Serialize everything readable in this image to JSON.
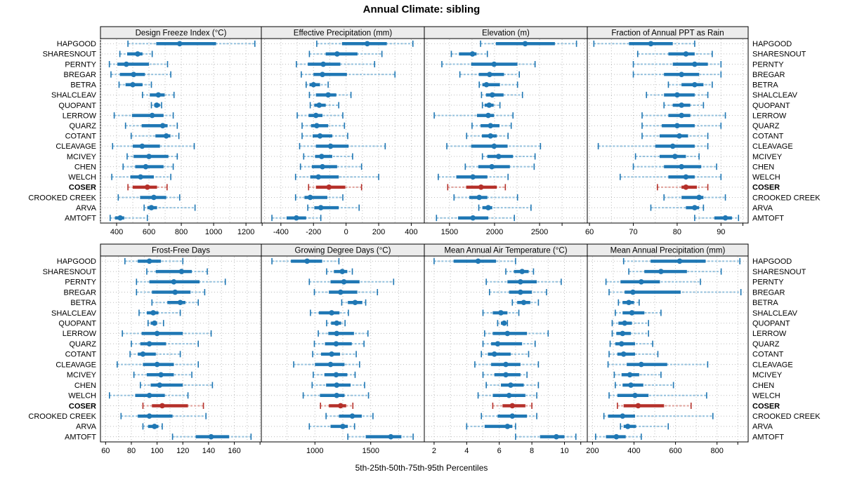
{
  "title": "Annual Climate: sibling",
  "caption": "5th-25th-50th-75th-95th Percentiles",
  "colors": {
    "normal": "#1f77b4",
    "normal_light": "#94c1dd",
    "highlight": "#b5302a",
    "highlight_light": "#dfa09a",
    "strip_bg": "#ececec",
    "grid": "#bdbdbd",
    "panel_border": "#000000",
    "text": "#000000"
  },
  "sites": [
    "HAPGOOD",
    "SHARESNOUT",
    "PERNTY",
    "BREGAR",
    "BETRA",
    "SHALCLEAV",
    "QUOPANT",
    "LERROW",
    "QUARZ",
    "COTANT",
    "CLEAVAGE",
    "MCIVEY",
    "CHEN",
    "WELCH",
    "COSER",
    "CROOKED CREEK",
    "ARVA",
    "AMTOFT"
  ],
  "highlight_site": "COSER",
  "chart_data": {
    "type": "scatter",
    "subtype": "multi-panel percentile interval dot plot (5th-25th-50th-75th-95th)",
    "percentiles": [
      5,
      25,
      50,
      75,
      95
    ],
    "layout": {
      "rows": 2,
      "cols": 4,
      "grid": "dotted",
      "y_categories": "sites listed on both left and right"
    },
    "panels": [
      {
        "id": "design_freeze_index",
        "title": "Design Freeze Index (°C)",
        "row": 0,
        "col": 0,
        "domain": [
          300,
          1295
        ],
        "major_ticks": [
          400,
          600,
          800,
          1000,
          1200
        ],
        "extra_ticks": [
          1300
        ],
        "grid_step": 100,
        "values": [
          [
            470,
            645,
            790,
            1015,
            1255
          ],
          [
            420,
            465,
            530,
            560,
            620
          ],
          [
            355,
            405,
            460,
            600,
            715
          ],
          [
            365,
            420,
            505,
            575,
            735
          ],
          [
            415,
            455,
            500,
            560,
            615
          ],
          [
            560,
            605,
            658,
            697,
            755
          ],
          [
            615,
            632,
            648,
            668,
            678
          ],
          [
            385,
            495,
            620,
            690,
            750
          ],
          [
            455,
            555,
            685,
            715,
            775
          ],
          [
            490,
            640,
            707,
            733,
            785
          ],
          [
            375,
            500,
            558,
            668,
            880
          ],
          [
            465,
            505,
            600,
            720,
            775
          ],
          [
            440,
            515,
            580,
            690,
            750
          ],
          [
            370,
            485,
            548,
            630,
            735
          ],
          [
            470,
            500,
            590,
            650,
            712
          ],
          [
            410,
            545,
            630,
            707,
            790
          ],
          [
            570,
            590,
            615,
            650,
            885
          ],
          [
            360,
            390,
            422,
            447,
            590
          ]
        ]
      },
      {
        "id": "effective_precipitation",
        "title": "Effective Precipitation (mm)",
        "row": 0,
        "col": 1,
        "domain": [
          -520,
          480
        ],
        "major_ticks": [
          -400,
          -200,
          0,
          200,
          400
        ],
        "extra_ticks": [],
        "grid_step": 100,
        "values": [
          [
            -180,
            -25,
            130,
            250,
            410
          ],
          [
            -225,
            -125,
            -55,
            70,
            220
          ],
          [
            -305,
            -235,
            -140,
            -35,
            175
          ],
          [
            -275,
            -200,
            -145,
            5,
            300
          ],
          [
            -245,
            -225,
            -200,
            -160,
            -110
          ],
          [
            -225,
            -185,
            -110,
            -60,
            30
          ],
          [
            -220,
            -195,
            -165,
            -125,
            -45
          ],
          [
            -300,
            -230,
            -185,
            -145,
            -20
          ],
          [
            -270,
            -215,
            -180,
            -110,
            -10
          ],
          [
            -270,
            -205,
            -160,
            -85,
            10
          ],
          [
            -285,
            -185,
            -95,
            15,
            240
          ],
          [
            -260,
            -190,
            -150,
            -85,
            40
          ],
          [
            -280,
            -210,
            -145,
            -55,
            95
          ],
          [
            -310,
            -220,
            -170,
            -45,
            200
          ],
          [
            -230,
            -185,
            -105,
            -5,
            95
          ],
          [
            -310,
            -255,
            -220,
            -115,
            -20
          ],
          [
            -235,
            -195,
            -155,
            -45,
            80
          ],
          [
            -455,
            -365,
            -305,
            -245,
            -155
          ]
        ]
      },
      {
        "id": "elevation",
        "title": "Elevation (m)",
        "row": 0,
        "col": 2,
        "domain": [
          1220,
          3030
        ],
        "major_ticks": [
          1500,
          2000,
          2500
        ],
        "extra_ticks": [
          2750
        ],
        "grid_step": 250,
        "values": [
          [
            1845,
            2015,
            2340,
            2670,
            2910
          ],
          [
            1520,
            1605,
            1755,
            1800,
            1920
          ],
          [
            1415,
            1740,
            1995,
            2255,
            2450
          ],
          [
            1615,
            1825,
            1945,
            2105,
            2275
          ],
          [
            1830,
            1865,
            1910,
            2060,
            2255
          ],
          [
            1855,
            1905,
            1975,
            2100,
            2310
          ],
          [
            1865,
            1890,
            1940,
            1990,
            2060
          ],
          [
            1330,
            1805,
            1930,
            1995,
            2205
          ],
          [
            1750,
            1845,
            1955,
            2055,
            2185
          ],
          [
            1690,
            1860,
            1955,
            2025,
            2150
          ],
          [
            1470,
            1740,
            1995,
            2145,
            2510
          ],
          [
            1865,
            1920,
            2045,
            2205,
            2450
          ],
          [
            1675,
            1820,
            1970,
            2170,
            2440
          ],
          [
            1375,
            1575,
            1760,
            1920,
            2150
          ],
          [
            1480,
            1685,
            1850,
            2025,
            2120
          ],
          [
            1550,
            1720,
            1830,
            1920,
            2255
          ],
          [
            1825,
            1865,
            1930,
            1975,
            2405
          ],
          [
            1355,
            1595,
            1760,
            1930,
            2220
          ]
        ]
      },
      {
        "id": "fraction_ppt_rain",
        "title": "Fraction of Annual PPT as Rain",
        "row": 0,
        "col": 3,
        "domain": [
          59.5,
          96.2
        ],
        "major_ticks": [
          60,
          70,
          80,
          90
        ],
        "extra_ticks": [
          95
        ],
        "grid_step": 5,
        "values": [
          [
            61,
            69,
            74,
            79,
            84
          ],
          [
            71,
            78,
            82,
            84,
            88
          ],
          [
            70,
            79,
            84,
            87,
            90
          ],
          [
            70,
            77,
            81,
            85,
            90
          ],
          [
            78,
            81,
            84,
            86,
            88
          ],
          [
            73,
            77,
            80,
            84,
            87
          ],
          [
            77,
            79,
            81,
            83,
            86
          ],
          [
            72,
            78,
            81,
            83,
            91
          ],
          [
            72,
            76.5,
            80,
            84,
            90
          ],
          [
            72,
            76,
            80.5,
            82.5,
            87
          ],
          [
            62,
            75,
            79,
            84,
            87
          ],
          [
            70.5,
            76,
            79.5,
            82,
            85
          ],
          [
            70,
            77,
            81,
            85.5,
            89
          ],
          [
            67,
            78,
            82,
            84,
            90
          ],
          [
            75.5,
            81,
            82,
            84.5,
            87
          ],
          [
            77,
            81,
            85,
            86,
            91
          ],
          [
            74,
            82,
            84,
            85,
            86
          ],
          [
            84,
            88.5,
            91,
            92.5,
            94
          ]
        ]
      },
      {
        "id": "frost_free_days",
        "title": "Frost-Free Days",
        "row": 1,
        "col": 0,
        "domain": [
          56,
          181
        ],
        "major_ticks": [
          60,
          80,
          100,
          120,
          140,
          160
        ],
        "extra_ticks": [
          180
        ],
        "grid_step": 10,
        "values": [
          [
            75,
            85,
            94,
            103,
            120
          ],
          [
            92,
            99,
            119,
            127,
            139
          ],
          [
            84,
            94,
            113,
            133,
            153
          ],
          [
            84,
            96,
            114,
            126,
            137
          ],
          [
            96,
            108,
            118,
            122,
            132
          ],
          [
            86,
            92,
            97,
            101,
            118
          ],
          [
            93,
            95,
            98,
            100,
            105
          ],
          [
            73,
            88,
            100,
            120,
            142
          ],
          [
            80,
            87,
            94,
            107,
            132
          ],
          [
            79,
            85,
            89,
            99,
            118
          ],
          [
            69,
            89,
            100,
            113,
            132
          ],
          [
            82,
            92,
            103,
            113,
            127
          ],
          [
            87,
            95,
            102,
            120,
            143
          ],
          [
            63,
            83,
            94,
            106,
            124
          ],
          [
            89,
            96,
            104,
            124,
            136
          ],
          [
            72,
            85,
            94,
            112,
            138
          ],
          [
            89,
            93,
            98,
            101,
            104
          ],
          [
            112,
            130,
            142,
            156,
            173
          ]
        ]
      },
      {
        "id": "growing_degree_days",
        "title": "Growing Degree Days (°C)",
        "row": 1,
        "col": 1,
        "domain": [
          520,
          1980
        ],
        "major_ticks": [
          1000,
          1500
        ],
        "extra_ticks": [],
        "grid_step": 250,
        "values": [
          [
            615,
            785,
            930,
            1065,
            1215
          ],
          [
            1105,
            1170,
            1245,
            1290,
            1335
          ],
          [
            950,
            1140,
            1260,
            1400,
            1705
          ],
          [
            995,
            1125,
            1230,
            1380,
            1560
          ],
          [
            1240,
            1295,
            1360,
            1425,
            1455
          ],
          [
            960,
            1035,
            1150,
            1220,
            1300
          ],
          [
            1105,
            1145,
            1195,
            1235,
            1270
          ],
          [
            1030,
            1120,
            1195,
            1350,
            1475
          ],
          [
            995,
            1090,
            1190,
            1330,
            1440
          ],
          [
            980,
            1055,
            1150,
            1225,
            1370
          ],
          [
            810,
            1000,
            1140,
            1265,
            1400
          ],
          [
            985,
            1085,
            1190,
            1290,
            1360
          ],
          [
            975,
            1100,
            1195,
            1320,
            1445
          ],
          [
            895,
            1045,
            1195,
            1265,
            1480
          ],
          [
            1050,
            1125,
            1230,
            1280,
            1340
          ],
          [
            1100,
            1215,
            1335,
            1420,
            1520
          ],
          [
            950,
            1140,
            1250,
            1295,
            1355
          ],
          [
            1295,
            1455,
            1680,
            1775,
            1880
          ]
        ]
      },
      {
        "id": "mean_annual_air_temperature",
        "title": "Mean Annual Air Temperature (°C)",
        "row": 1,
        "col": 2,
        "domain": [
          1.4,
          11.4
        ],
        "major_ticks": [
          2,
          4,
          6,
          8,
          10
        ],
        "extra_ticks": [
          11
        ],
        "grid_step": 1,
        "values": [
          [
            2.0,
            3.2,
            4.7,
            5.8,
            7.0
          ],
          [
            6.4,
            6.9,
            7.4,
            7.8,
            8.1
          ],
          [
            5.2,
            6.5,
            7.3,
            8.3,
            9.8
          ],
          [
            5.4,
            6.6,
            7.3,
            8.0,
            8.9
          ],
          [
            6.8,
            7.1,
            7.5,
            7.9,
            8.4
          ],
          [
            5.0,
            5.6,
            6.1,
            6.5,
            7.2
          ],
          [
            5.9,
            6.1,
            6.3,
            6.4,
            6.5
          ],
          [
            5.1,
            5.6,
            6.5,
            7.7,
            9.0
          ],
          [
            5.0,
            5.5,
            5.9,
            7.4,
            8.2
          ],
          [
            4.9,
            5.3,
            5.7,
            6.7,
            7.8
          ],
          [
            4.5,
            5.5,
            6.4,
            7.3,
            8.4
          ],
          [
            5.0,
            5.7,
            6.4,
            7.3,
            7.7
          ],
          [
            5.2,
            6.1,
            6.7,
            7.5,
            8.4
          ],
          [
            4.7,
            5.6,
            6.6,
            7.6,
            8.3
          ],
          [
            5.6,
            6.2,
            6.8,
            7.6,
            8.0
          ],
          [
            4.9,
            5.9,
            6.8,
            7.7,
            8.3
          ],
          [
            4.0,
            5.1,
            6.5,
            6.8,
            7.0
          ],
          [
            7.0,
            8.5,
            9.5,
            10.0,
            10.7
          ]
        ]
      },
      {
        "id": "mean_annual_precipitation",
        "title": "Mean Annual Precipitation (mm)",
        "row": 1,
        "col": 3,
        "domain": [
          175,
          950
        ],
        "major_ticks": [
          200,
          400,
          600,
          800
        ],
        "extra_ticks": [
          900
        ],
        "grid_step": 100,
        "values": [
          [
            350,
            480,
            620,
            745,
            910
          ],
          [
            375,
            450,
            530,
            655,
            820
          ],
          [
            265,
            335,
            435,
            525,
            720
          ],
          [
            280,
            355,
            395,
            625,
            915
          ],
          [
            325,
            345,
            375,
            400,
            425
          ],
          [
            310,
            345,
            390,
            450,
            530
          ],
          [
            295,
            325,
            355,
            390,
            470
          ],
          [
            295,
            315,
            345,
            385,
            470
          ],
          [
            285,
            310,
            340,
            405,
            490
          ],
          [
            280,
            320,
            350,
            405,
            515
          ],
          [
            275,
            365,
            435,
            560,
            755
          ],
          [
            305,
            340,
            380,
            425,
            530
          ],
          [
            310,
            345,
            385,
            445,
            590
          ],
          [
            280,
            320,
            405,
            470,
            750
          ],
          [
            320,
            350,
            420,
            545,
            675
          ],
          [
            255,
            275,
            345,
            405,
            780
          ],
          [
            335,
            350,
            370,
            410,
            565
          ],
          [
            215,
            265,
            315,
            360,
            435
          ]
        ]
      }
    ]
  }
}
